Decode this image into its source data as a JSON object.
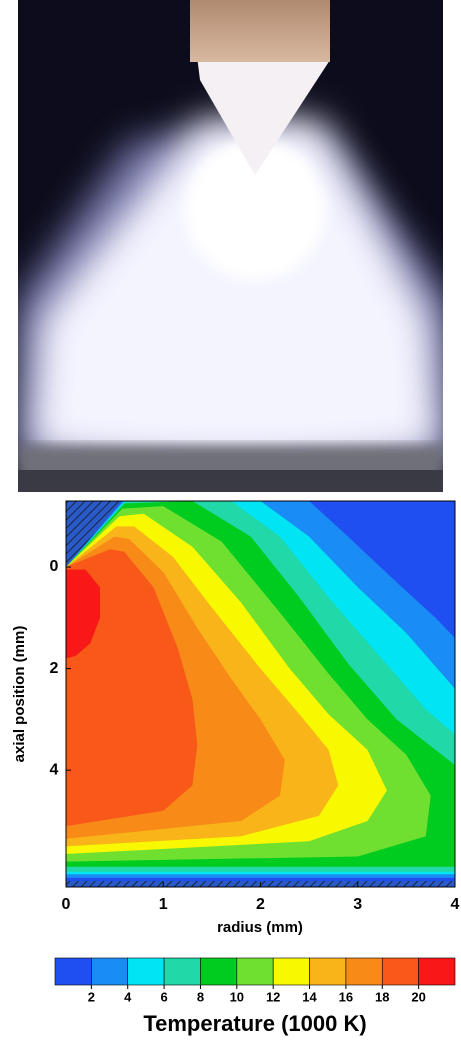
{
  "chart_data": {
    "type": "contour",
    "xlabel": "radius (mm)",
    "ylabel": "axial position (mm)",
    "xlim": [
      0,
      4
    ],
    "ylim": [
      -1.3,
      6.3
    ],
    "y_inverted": true,
    "xticks": [
      0,
      1,
      2,
      3,
      4
    ],
    "yticks": [
      0,
      2,
      4
    ],
    "colorbar": {
      "label": "Temperature (1000 K)",
      "lim": [
        0,
        22
      ],
      "ticks": [
        2,
        4,
        6,
        8,
        10,
        12,
        14,
        16,
        18,
        20
      ],
      "colors": [
        "#1f4ff0",
        "#1a8cf5",
        "#00e4f4",
        "#20d8a8",
        "#00cc20",
        "#70e030",
        "#f8f800",
        "#f8b418",
        "#f88a18",
        "#f85818",
        "#f81818"
      ]
    },
    "contours": [
      {
        "level": 2,
        "points": [
          [
            0,
            0
          ],
          [
            0.58,
            -1.3
          ],
          [
            2.5,
            -1.3
          ],
          [
            2.9,
            -0.6
          ],
          [
            3.4,
            0.3
          ],
          [
            3.8,
            1.0
          ],
          [
            4,
            1.4
          ],
          [
            4,
            6.12
          ],
          [
            0,
            6.12
          ]
        ]
      },
      {
        "level": 4,
        "points": [
          [
            0,
            0
          ],
          [
            0.6,
            -1.3
          ],
          [
            2.0,
            -1.3
          ],
          [
            2.5,
            -0.6
          ],
          [
            3.0,
            0.4
          ],
          [
            3.5,
            1.3
          ],
          [
            4,
            2.4
          ],
          [
            4,
            6.05
          ],
          [
            0,
            6.05
          ]
        ]
      },
      {
        "level": 6,
        "points": [
          [
            0,
            0
          ],
          [
            0.62,
            -1.3
          ],
          [
            1.7,
            -1.3
          ],
          [
            2.2,
            -0.6
          ],
          [
            2.7,
            0.6
          ],
          [
            3.2,
            1.7
          ],
          [
            3.7,
            2.8
          ],
          [
            4,
            3.3
          ],
          [
            4,
            6.0
          ],
          [
            0,
            6.0
          ]
        ]
      },
      {
        "level": 8,
        "points": [
          [
            0,
            0
          ],
          [
            0.6,
            -1.25
          ],
          [
            1.3,
            -1.3
          ],
          [
            1.9,
            -0.6
          ],
          [
            2.4,
            0.6
          ],
          [
            2.9,
            1.9
          ],
          [
            3.4,
            3.0
          ],
          [
            4,
            3.9
          ],
          [
            4,
            5.9
          ],
          [
            0,
            5.9
          ]
        ]
      },
      {
        "level": 10,
        "points": [
          [
            0,
            0
          ],
          [
            0.58,
            -1.15
          ],
          [
            1.0,
            -1.2
          ],
          [
            1.6,
            -0.5
          ],
          [
            2.2,
            0.9
          ],
          [
            2.7,
            2.1
          ],
          [
            3.1,
            3.0
          ],
          [
            3.5,
            3.7
          ],
          [
            3.75,
            4.5
          ],
          [
            3.7,
            5.3
          ],
          [
            3.0,
            5.7
          ],
          [
            0,
            5.8
          ]
        ]
      },
      {
        "level": 12,
        "points": [
          [
            0,
            0
          ],
          [
            0.55,
            -1.0
          ],
          [
            0.8,
            -1.05
          ],
          [
            1.3,
            -0.4
          ],
          [
            1.8,
            0.7
          ],
          [
            2.3,
            2.0
          ],
          [
            2.7,
            2.9
          ],
          [
            3.1,
            3.6
          ],
          [
            3.3,
            4.4
          ],
          [
            3.1,
            5.0
          ],
          [
            2.5,
            5.4
          ],
          [
            0,
            5.65
          ]
        ]
      },
      {
        "level": 14,
        "points": [
          [
            0,
            0
          ],
          [
            0.52,
            -0.8
          ],
          [
            0.7,
            -0.8
          ],
          [
            1.1,
            -0.2
          ],
          [
            1.5,
            0.8
          ],
          [
            2.0,
            2.0
          ],
          [
            2.4,
            2.9
          ],
          [
            2.7,
            3.6
          ],
          [
            2.8,
            4.3
          ],
          [
            2.6,
            4.9
          ],
          [
            1.8,
            5.3
          ],
          [
            0,
            5.5
          ]
        ]
      },
      {
        "level": 16,
        "points": [
          [
            0,
            0
          ],
          [
            0.5,
            -0.6
          ],
          [
            0.65,
            -0.55
          ],
          [
            1.0,
            0.1
          ],
          [
            1.35,
            1.2
          ],
          [
            1.7,
            2.2
          ],
          [
            2.0,
            3.0
          ],
          [
            2.25,
            3.8
          ],
          [
            2.2,
            4.5
          ],
          [
            1.8,
            5.0
          ],
          [
            0,
            5.35
          ]
        ]
      },
      {
        "level": 18,
        "points": [
          [
            0,
            0
          ],
          [
            0.45,
            -0.35
          ],
          [
            0.6,
            -0.3
          ],
          [
            0.9,
            0.4
          ],
          [
            1.15,
            1.6
          ],
          [
            1.3,
            2.6
          ],
          [
            1.35,
            3.5
          ],
          [
            1.3,
            4.3
          ],
          [
            1.0,
            4.8
          ],
          [
            0,
            5.1
          ]
        ]
      },
      {
        "level": 20,
        "points": [
          [
            0,
            0.05
          ],
          [
            0.2,
            0.05
          ],
          [
            0.35,
            0.4
          ],
          [
            0.35,
            1.0
          ],
          [
            0.25,
            1.5
          ],
          [
            0.1,
            1.75
          ],
          [
            0,
            1.8
          ]
        ]
      }
    ]
  }
}
